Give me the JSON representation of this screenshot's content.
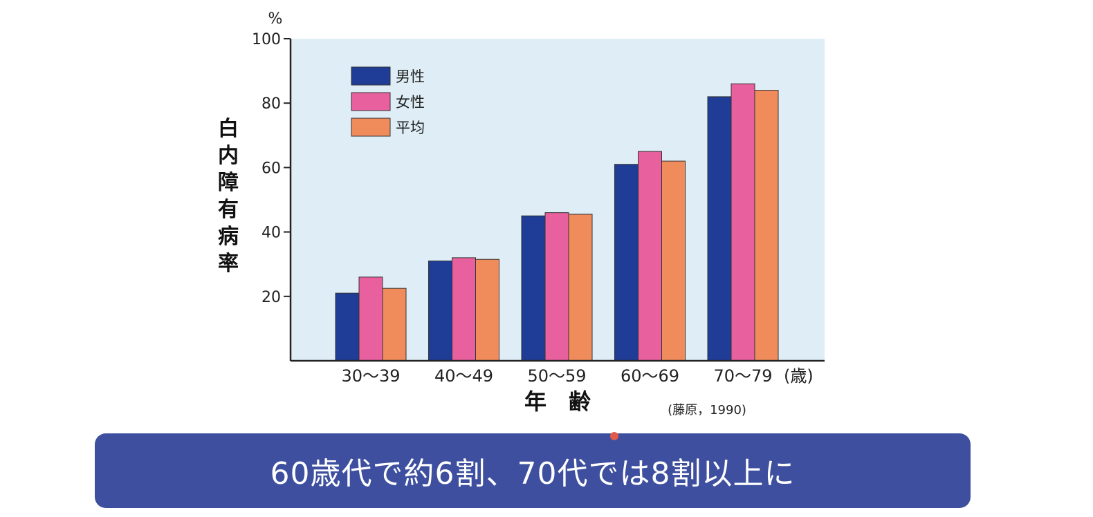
{
  "colors": {
    "male": "#1f3c96",
    "female": "#e8609d",
    "average": "#f08c5c",
    "plot_background": "#dfeef6",
    "banner": "#3d4f9e"
  },
  "chart_data": {
    "type": "bar",
    "ylabel": "白内障有病率",
    "yunit": "%",
    "xlabel": "年　齢",
    "xunit": "(歳)",
    "source": "(藤原，1990)",
    "ylim": [
      0,
      100
    ],
    "yticks": [
      20,
      40,
      60,
      80,
      100
    ],
    "categories": [
      "30～39",
      "40～49",
      "50～59",
      "60～69",
      "70～79"
    ],
    "series": [
      {
        "name": "男性",
        "values": [
          21,
          31,
          45,
          61,
          82
        ]
      },
      {
        "name": "女性",
        "values": [
          26,
          32,
          46,
          65,
          86
        ]
      },
      {
        "name": "平均",
        "values": [
          22.5,
          31.5,
          45.5,
          62,
          84
        ]
      }
    ],
    "legend_position": "top-left"
  },
  "banner": {
    "text": "60歳代で約6割、70代では8割以上に"
  }
}
